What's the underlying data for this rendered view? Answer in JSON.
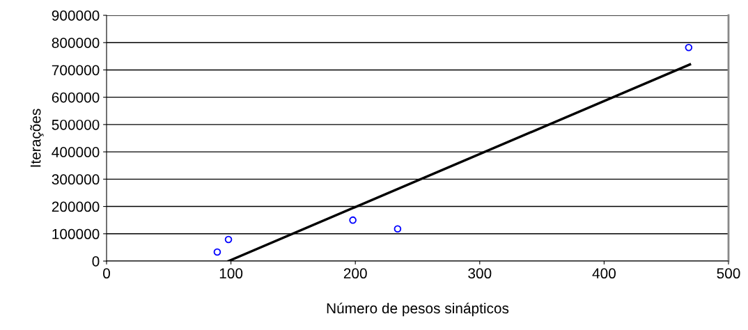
{
  "chart_data": {
    "type": "scatter",
    "xlabel": "Número de pesos sinápticos",
    "ylabel": "Iterações",
    "xlim": [
      0,
      500
    ],
    "xticks": [
      0,
      100,
      200,
      300,
      400,
      500
    ],
    "ylim": [
      0,
      900000
    ],
    "yticks": [
      0,
      100000,
      200000,
      300000,
      400000,
      500000,
      600000,
      700000,
      800000,
      900000
    ],
    "grid": "y",
    "series": [
      {
        "color": "#0000ff",
        "marker": "circle",
        "x": [
          89,
          98,
          198,
          234,
          468
        ],
        "values": [
          33000,
          79000,
          150000,
          118000,
          782000
        ]
      },
      {
        "type": "line",
        "color": "#000000",
        "marker": "none",
        "line_style": "solid",
        "x": [
          98,
          469
        ],
        "values": [
          0,
          720000
        ]
      }
    ]
  }
}
